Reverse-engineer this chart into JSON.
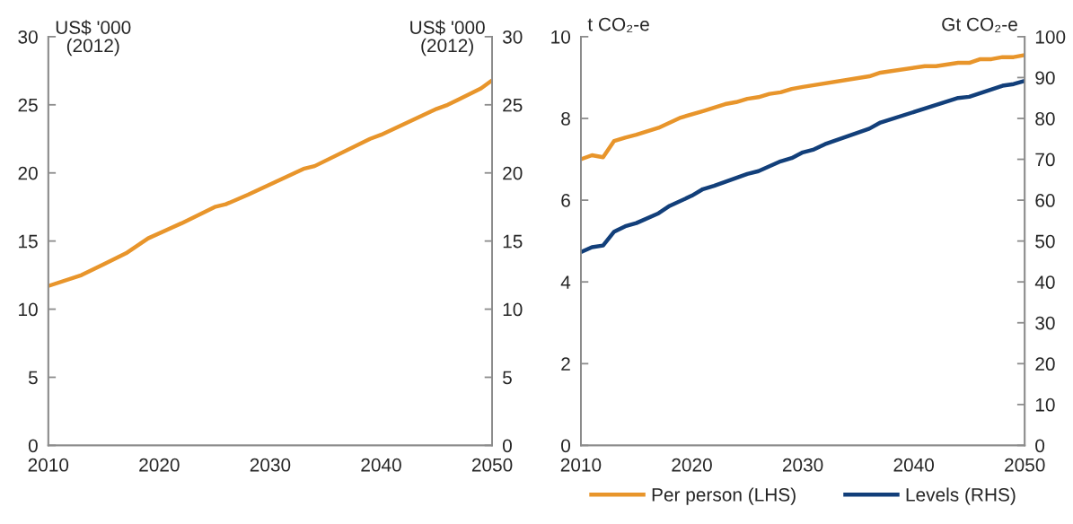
{
  "chart_data": [
    {
      "type": "line",
      "ylabel": "US$ '000\n(2012)",
      "y2label": "US$ '000\n(2012)",
      "xlim": [
        2010,
        2050
      ],
      "xticks": [
        2010,
        2020,
        2030,
        2040,
        2050
      ],
      "ylim": [
        0,
        30
      ],
      "yticks": [
        0,
        5,
        10,
        15,
        20,
        25,
        30
      ],
      "y2lim": [
        0,
        30
      ],
      "y2ticks": [
        0,
        5,
        10,
        15,
        20,
        25,
        30
      ],
      "grid": false,
      "legend": false,
      "series": [
        {
          "color": "#e8952b",
          "x": [
            2010,
            2013,
            2015,
            2017,
            2019,
            2022,
            2025,
            2026,
            2028,
            2033,
            2034,
            2039,
            2040,
            2045,
            2046,
            2049,
            2050
          ],
          "values": [
            11.7,
            12.5,
            13.3,
            14.1,
            15.2,
            16.3,
            17.5,
            17.7,
            18.4,
            20.3,
            20.5,
            22.5,
            22.8,
            24.7,
            25.0,
            26.2,
            26.8
          ]
        }
      ]
    },
    {
      "type": "line",
      "ylabel": "t CO₂-e",
      "y2label": "Gt CO₂-e",
      "xlim": [
        2010,
        2050
      ],
      "xticks": [
        2010,
        2020,
        2030,
        2040,
        2050
      ],
      "ylim": [
        0,
        10
      ],
      "yticks": [
        0,
        2,
        4,
        6,
        8,
        10
      ],
      "y2lim": [
        0,
        100
      ],
      "y2ticks": [
        0,
        10,
        20,
        30,
        40,
        50,
        60,
        70,
        80,
        90,
        100
      ],
      "grid": false,
      "legend": "bottom",
      "series": [
        {
          "name": "Per person (LHS)",
          "color": "#e8952b",
          "x": [
            2010,
            2011,
            2012,
            2013,
            2014,
            2015,
            2017,
            2019,
            2021,
            2023,
            2024,
            2025,
            2026,
            2027,
            2028,
            2029,
            2030,
            2036,
            2037,
            2041,
            2042,
            2044,
            2045,
            2046,
            2047,
            2048,
            2049,
            2050
          ],
          "values": [
            7.0,
            7.1,
            7.05,
            7.45,
            7.53,
            7.6,
            7.77,
            8.02,
            8.18,
            8.35,
            8.4,
            8.48,
            8.52,
            8.6,
            8.64,
            8.72,
            8.77,
            9.03,
            9.12,
            9.28,
            9.28,
            9.36,
            9.36,
            9.45,
            9.45,
            9.5,
            9.5,
            9.55
          ]
        },
        {
          "name": "Levels (RHS)",
          "color": "#123f7a",
          "axis": "y2",
          "x": [
            2010,
            2011,
            2012,
            2013,
            2014,
            2015,
            2017,
            2018,
            2020,
            2021,
            2022,
            2025,
            2026,
            2028,
            2029,
            2030,
            2031,
            2032,
            2036,
            2037,
            2044,
            2045,
            2048,
            2049,
            2050
          ],
          "values": [
            47.3,
            48.5,
            48.9,
            52.3,
            53.6,
            54.4,
            56.8,
            58.6,
            61.1,
            62.7,
            63.5,
            66.4,
            67.1,
            69.5,
            70.3,
            71.7,
            72.4,
            73.7,
            77.5,
            79.0,
            85.0,
            85.3,
            88.0,
            88.4,
            89.2
          ]
        }
      ]
    }
  ]
}
